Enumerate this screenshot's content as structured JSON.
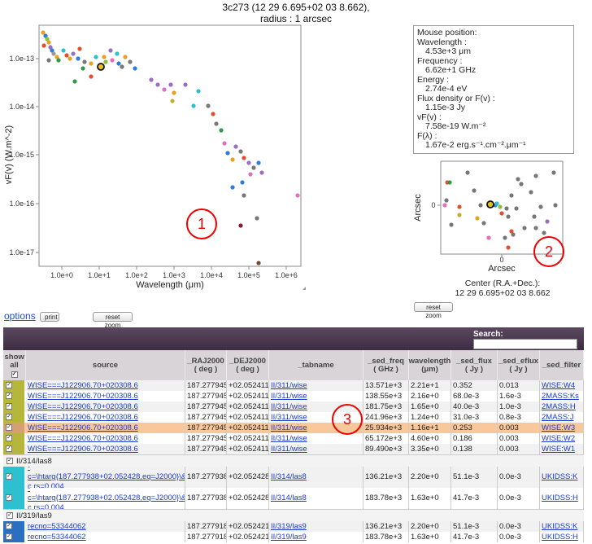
{
  "header": {
    "title_line1": "3c273 (12 29 6.695+02 03 8.662),",
    "title_line2": "radius : 1 arcsec"
  },
  "sed_plot": {
    "ylabel": "vF(v) (W.m^-2)",
    "xlabel": "Wavelength (μm)",
    "yticks": [
      "1.0e-13",
      "1.0e-14",
      "1.0e-15",
      "1.0e-16",
      "1.0e-17"
    ],
    "xticks": [
      "1.0e+0",
      "1.0e+1",
      "1.0e+2",
      "1.0e+3",
      "1.0e+4",
      "1.0e+5",
      "1.0e+6"
    ],
    "annotation": "1"
  },
  "mouse_panel": {
    "title": "Mouse position:",
    "wavelength_label": "Wavelength :",
    "wavelength_value": "4.53e+3 μm",
    "frequency_label": "Frequency :",
    "frequency_value": "6.62e+1 GHz",
    "energy_label": "Energy :",
    "energy_value": "2.74e-4 eV",
    "flux_label": "Flux density or F(v) :",
    "flux_value": "1.15e-3 Jy",
    "vfv_label": "vF(v) :",
    "vfv_value": "7.58e-19 W.m⁻²",
    "flambda_label": "F(λ) :",
    "flambda_value": "1.67e-2 erg.s⁻¹.cm⁻².μm⁻¹"
  },
  "sky_plot": {
    "ylabel": "Arcsec",
    "xlabel": "Arcsec",
    "ytick": "0",
    "xtick": "0",
    "annotation": "2"
  },
  "center": {
    "line1": "Center (R.A.+Dec.):",
    "line2": "12 29 6.695+02 03 8.662"
  },
  "buttons": {
    "reset_zoom_1": "reset zoom",
    "reset_zoom_2": "reset zoom",
    "print": "print",
    "options": "options"
  },
  "table": {
    "search_label": "Search:",
    "show_all": "show all",
    "columns": [
      "source",
      "_RAJ2000\n( deg )",
      "_DEJ2000\n( deg )",
      "_tabname",
      "_sed_freq\n( GHz )",
      "wavelength\n(μm)",
      "_sed_flux\n( Jy )",
      "_sed_eflux\n( Jy )",
      "_sed_filter"
    ],
    "rows_top": [
      {
        "source": "WISE===J122906.70+020308.6",
        "ra": "187.277945",
        "dec": "+02.052411",
        "tab": "II/311/wise",
        "freq": "13.571e+3",
        "wl": "2.21e+1",
        "flux": "0.352",
        "eflux": "0.013",
        "filter": "WISE:W4"
      },
      {
        "source": "WISE===J122906.70+020308.6",
        "ra": "187.277945",
        "dec": "+02.052411",
        "tab": "II/311/wise",
        "freq": "138.55e+3",
        "wl": "2.16e+0",
        "flux": "68.0e-3",
        "eflux": "1.6e-3",
        "filter": "2MASS:Ks"
      },
      {
        "source": "WISE===J122906.70+020308.6",
        "ra": "187.277945",
        "dec": "+02.052411",
        "tab": "II/311/wise",
        "freq": "181.75e+3",
        "wl": "1.65e+0",
        "flux": "40.0e-3",
        "eflux": "1.0e-3",
        "filter": "2MASS:H"
      },
      {
        "source": "WISE===J122906.70+020308.6",
        "ra": "187.277945",
        "dec": "+02.052411",
        "tab": "II/311/wise",
        "freq": "241.96e+3",
        "wl": "1.24e+0",
        "flux": "31.0e-3",
        "eflux": "0.8e-3",
        "filter": "2MASS:J"
      },
      {
        "source": "WISE===J122906.70+020308.6",
        "ra": "187.277945",
        "dec": "+02.052411",
        "tab": "II/311/wise",
        "freq": "25.934e+3",
        "wl": "1.16e+1",
        "flux": "0.253",
        "eflux": "0.003",
        "filter": "WISE:W3"
      },
      {
        "source": "WISE===J122906.70+020308.6",
        "ra": "187.277945",
        "dec": "+02.052411",
        "tab": "II/311/wise",
        "freq": "65.172e+3",
        "wl": "4.60e+0",
        "flux": "0.186",
        "eflux": "0.003",
        "filter": "WISE:W2"
      },
      {
        "source": "WISE===J122906.70+020308.6",
        "ra": "187.277945",
        "dec": "+02.052411",
        "tab": "II/311/wise",
        "freq": "89.490e+3",
        "wl": "3.35e+0",
        "flux": "0.138",
        "eflux": "0.003",
        "filter": "WISE:W1"
      }
    ],
    "group1": "II/314/las8",
    "rows_g1": [
      {
        "source": "-c=\\htarg{187.277938+02.052428,eq=J2000}\\&-c.rs=0.004",
        "ra": "187.277938",
        "dec": "+02.052428",
        "tab": "II/314/las8",
        "freq": "136.21e+3",
        "wl": "2.20e+0",
        "flux": "51.1e-3",
        "eflux": "0.0e-3",
        "filter": "UKIDSS:K"
      },
      {
        "source": "-c=\\htarg{187.277938+02.052428,eq=J2000}\\&-c.rs=0.004",
        "ra": "187.277938",
        "dec": "+02.052428",
        "tab": "II/314/las8",
        "freq": "183.78e+3",
        "wl": "1.63e+0",
        "flux": "41.7e-3",
        "eflux": "0.0e-3",
        "filter": "UKIDSS:H"
      }
    ],
    "group2": "II/319/las9",
    "rows_g2": [
      {
        "source": "recno=53344062",
        "ra": "187.277918",
        "dec": "+02.052421",
        "tab": "II/319/las9",
        "freq": "136.21e+3",
        "wl": "2.20e+0",
        "flux": "51.1e-3",
        "eflux": "0.0e-3",
        "filter": "UKIDSS:K"
      },
      {
        "source": "recno=53344062",
        "ra": "187.277918",
        "dec": "+02.052421",
        "tab": "II/319/las9",
        "freq": "183.78e+3",
        "wl": "1.63e+0",
        "flux": "41.7e-3",
        "eflux": "0.0e-3",
        "filter": "UKIDSS:H"
      }
    ],
    "annotation": "3"
  }
}
